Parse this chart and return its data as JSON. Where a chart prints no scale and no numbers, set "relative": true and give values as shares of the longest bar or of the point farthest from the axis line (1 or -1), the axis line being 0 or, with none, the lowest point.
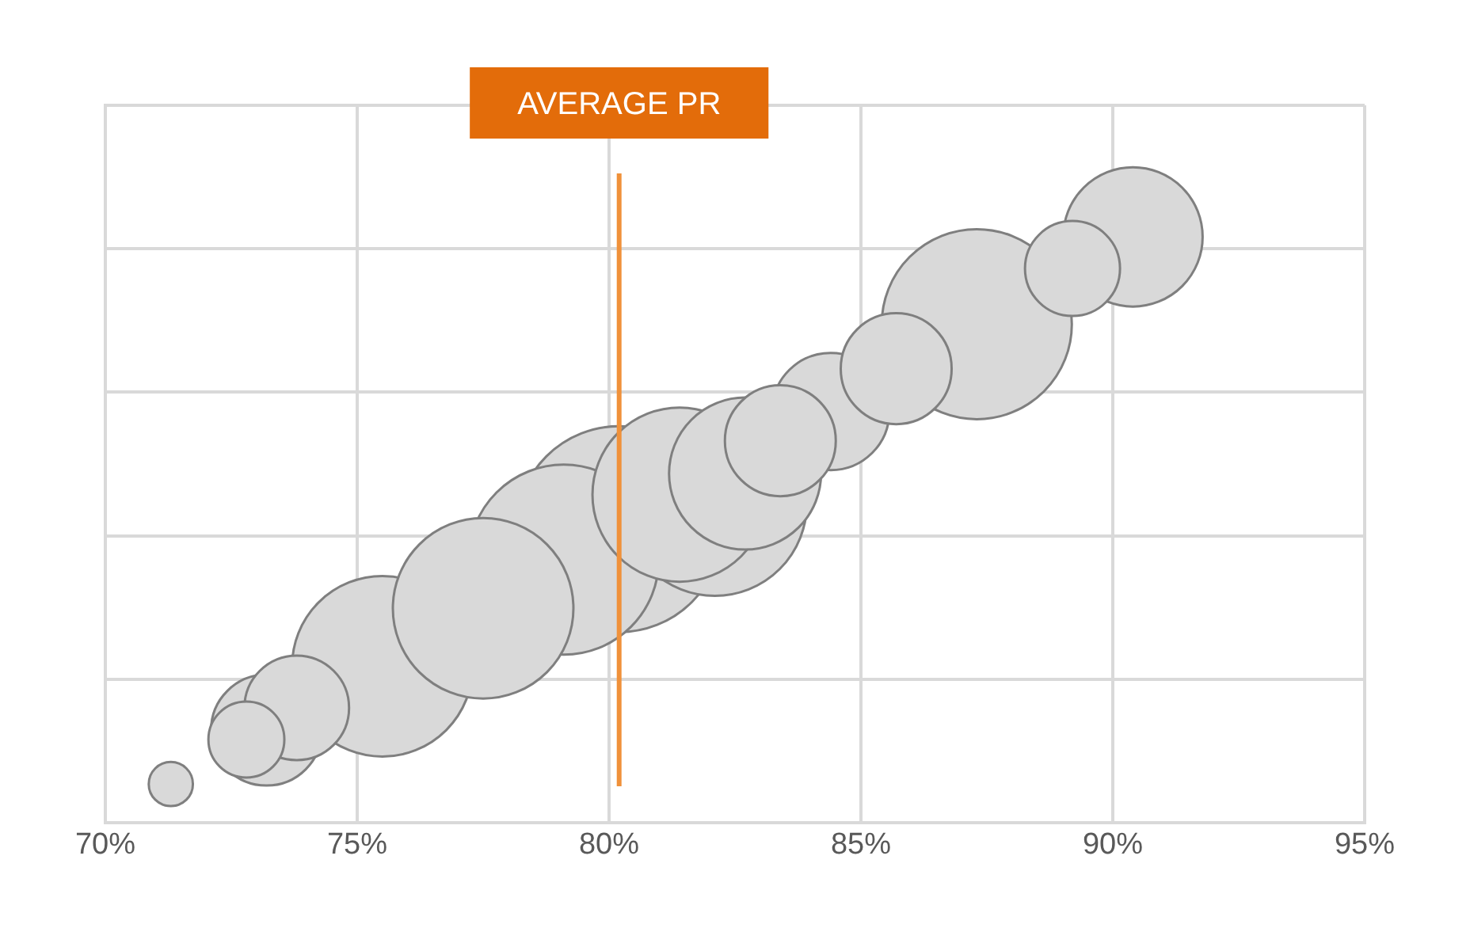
{
  "chart_data": {
    "type": "bubble",
    "relative": true,
    "x": [
      80.2,
      79.1,
      87.3,
      82.1,
      75.5,
      77.5,
      81.4,
      82.7,
      90.4,
      84.4,
      73.2,
      83.4,
      85.7,
      73.8,
      89.2,
      72.8,
      71.3
    ],
    "series": [
      {
        "color": "#d9d9d9",
        "values": [
          0.501,
          0.449,
          0.851,
          0.544,
          0.267,
          0.366,
          0.56,
          0.596,
          1,
          0.702,
          0.158,
          0.652,
          0.775,
          0.196,
          0.946,
          0.142,
          0.066
        ],
        "sizes": [
          1,
          0.852,
          0.852,
          0.796,
          0.769,
          0.769,
          0.716,
          0.545,
          0.458,
          0.324,
          0.29,
          0.29,
          0.29,
          0.258,
          0.213,
          0.136,
          0.046
        ]
      }
    ],
    "xlim": [
      70,
      95
    ],
    "xticks": [
      {
        "value": 70,
        "label": "70%"
      },
      {
        "value": 75,
        "label": "75%"
      },
      {
        "value": 80,
        "label": "80%"
      },
      {
        "value": 85,
        "label": "85%"
      },
      {
        "value": 90,
        "label": "90%"
      },
      {
        "value": 95,
        "label": "95%"
      }
    ],
    "grid": true,
    "ref_lines": [
      {
        "axis": "x",
        "value": 80.2,
        "label": "AVERAGE PR",
        "color": "#f0913a"
      }
    ]
  }
}
